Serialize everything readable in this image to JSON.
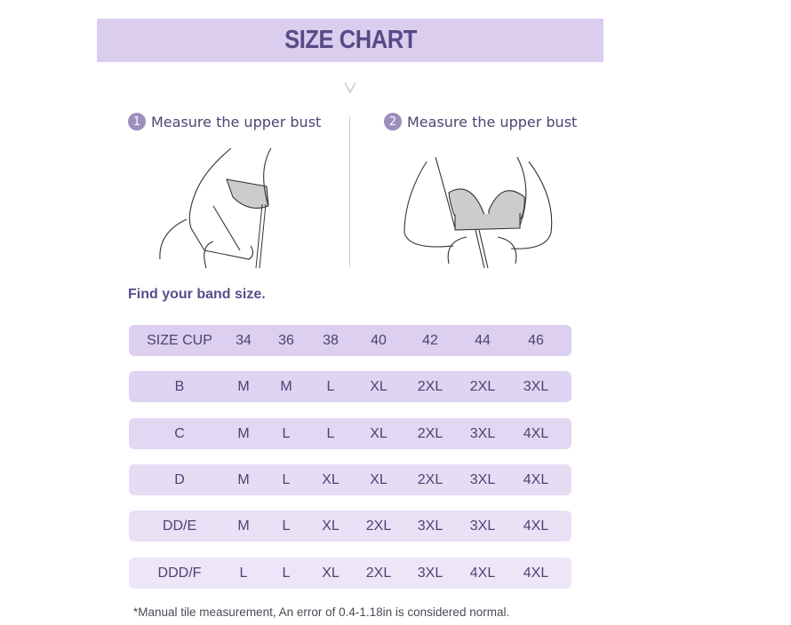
{
  "title": "SIZE CHART",
  "steps": [
    {
      "number": "1",
      "label": "Measure the upper bust"
    },
    {
      "number": "2",
      "label": "Measure the upper bust"
    }
  ],
  "subtitle": "Find your band size.",
  "table": {
    "header": [
      "SIZE CUP",
      "34",
      "36",
      "38",
      "40",
      "42",
      "44",
      "46"
    ],
    "rows": [
      [
        "B",
        "M",
        "M",
        "L",
        "XL",
        "2XL",
        "2XL",
        "3XL"
      ],
      [
        "C",
        "M",
        "L",
        "L",
        "XL",
        "2XL",
        "3XL",
        "4XL"
      ],
      [
        "D",
        "M",
        "L",
        "XL",
        "XL",
        "2XL",
        "3XL",
        "4XL"
      ],
      [
        "DD/E",
        "M",
        "L",
        "XL",
        "2XL",
        "3XL",
        "3XL",
        "4XL"
      ],
      [
        "DDD/F",
        "L",
        "L",
        "XL",
        "2XL",
        "3XL",
        "4XL",
        "4XL"
      ]
    ]
  },
  "note": "*Manual tile measurement, An error of 0.4-1.18in is considered normal.",
  "colors": {
    "banner": "#dacdee",
    "title": "#574a86",
    "row_top": "#dccff0",
    "row_bottom": "#ede6f8",
    "text": "#4e4372"
  }
}
